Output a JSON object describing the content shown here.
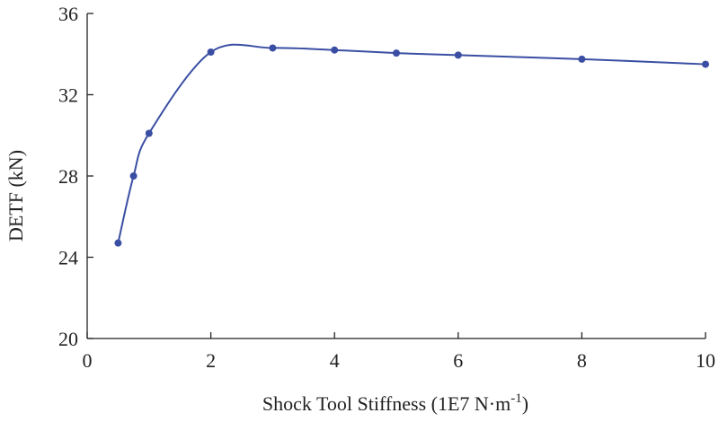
{
  "chart_data": {
    "type": "line",
    "title": "",
    "xlabel": "Shock Tool Stiffness (1E7 N·m",
    "xlabel_superscript": "-1",
    "xlabel_suffix": ")",
    "ylabel": "DETF (kN)",
    "xlim": [
      0,
      10
    ],
    "ylim": [
      20,
      36
    ],
    "xticks": [
      0,
      2,
      4,
      6,
      8,
      10
    ],
    "yticks": [
      20,
      24,
      28,
      32,
      36
    ],
    "grid": false,
    "legend": "none",
    "series": [
      {
        "color": "#3a4fa3",
        "marker": "circle",
        "smooth": true,
        "x": [
          0.5,
          0.75,
          1.0,
          2.0,
          3.0,
          4.0,
          5.0,
          6.0,
          8.0,
          10.0
        ],
        "y": [
          24.7,
          28.0,
          30.1,
          34.1,
          34.3,
          34.2,
          34.05,
          33.95,
          33.75,
          33.5
        ]
      }
    ]
  }
}
